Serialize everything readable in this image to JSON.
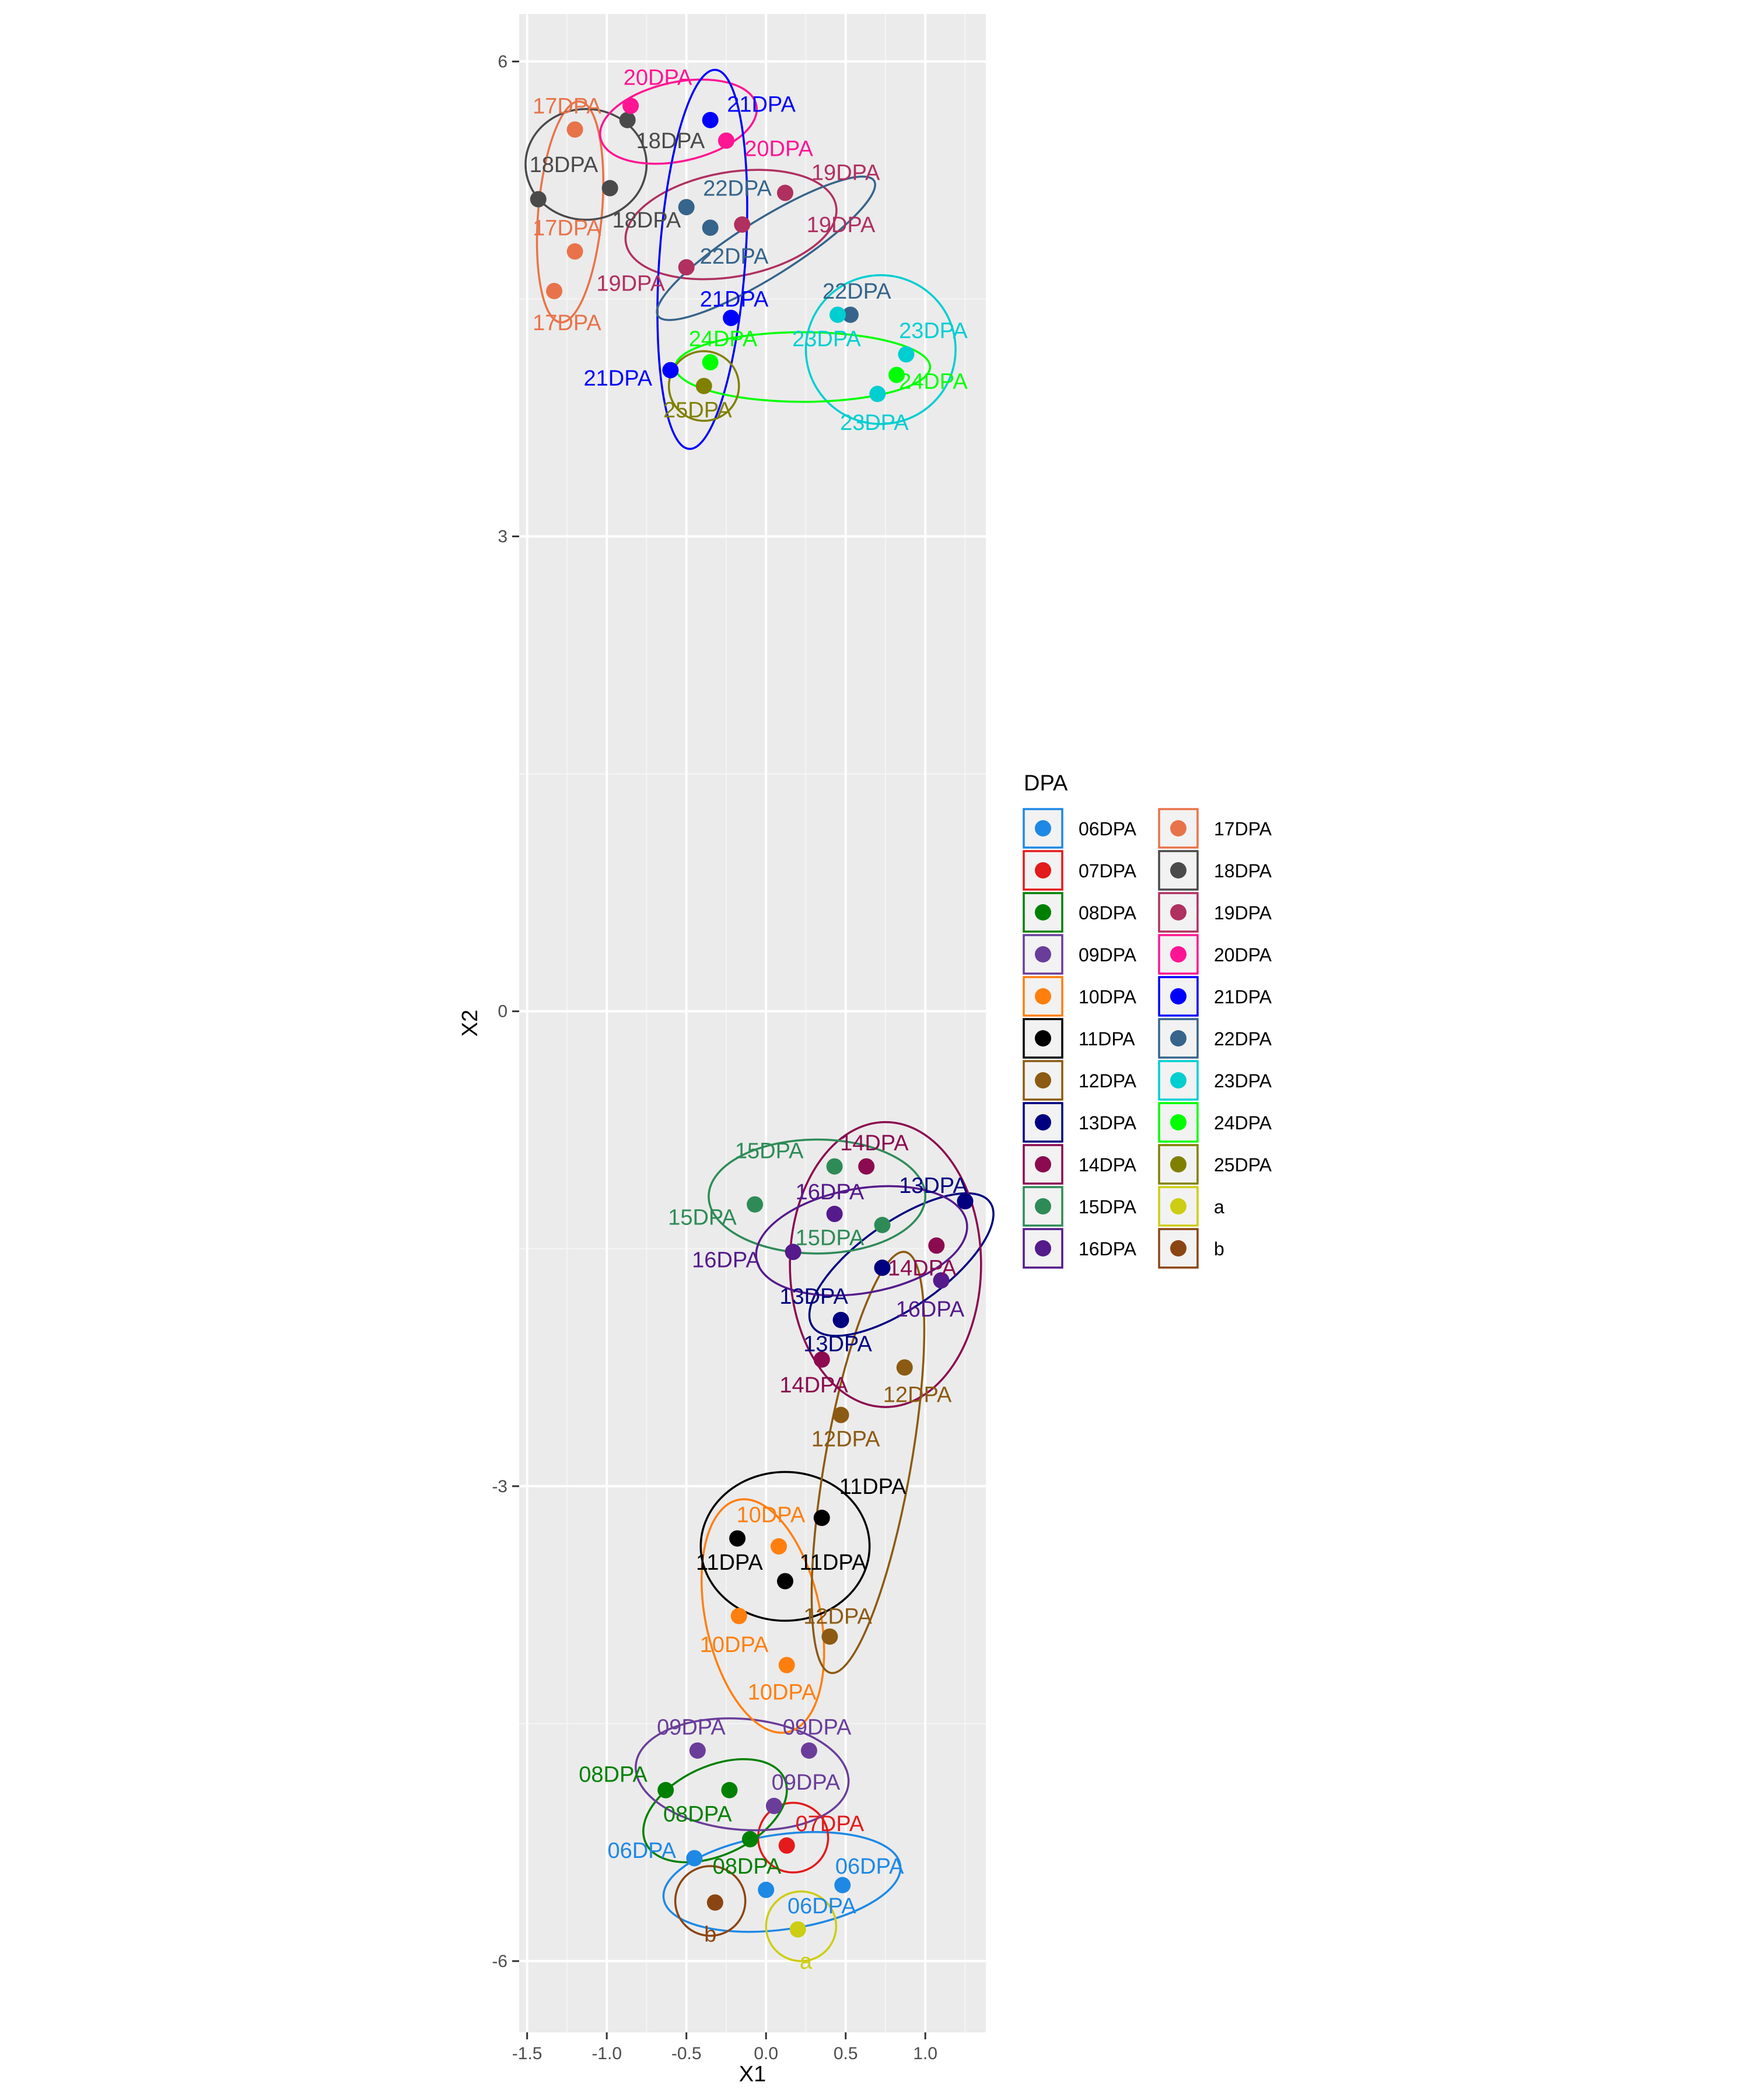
{
  "chart_data": {
    "type": "scatter",
    "xlabel": "X1",
    "ylabel": "X2",
    "xlim": [
      -1.55,
      1.38
    ],
    "ylim": [
      -6.45,
      6.3
    ],
    "xticks": [
      -1.5,
      -1.0,
      -0.5,
      0.0,
      0.5,
      1.0
    ],
    "xtick_labels": [
      "-1.5",
      "-1.0",
      "-0.5",
      "0.0",
      "0.5",
      "1.0"
    ],
    "yticks": [
      -6,
      -3,
      0,
      3,
      6
    ],
    "ytick_labels": [
      "-6",
      "-3",
      "0",
      "3",
      "6"
    ],
    "grid": true,
    "legend": {
      "title": "DPA",
      "placement": "right",
      "entries": [
        "06DPA",
        "07DPA",
        "08DPA",
        "09DPA",
        "10DPA",
        "11DPA",
        "12DPA",
        "13DPA",
        "14DPA",
        "15DPA",
        "16DPA",
        "17DPA",
        "18DPA",
        "19DPA",
        "20DPA",
        "21DPA",
        "22DPA",
        "23DPA",
        "24DPA",
        "25DPA",
        "a",
        "b"
      ]
    },
    "colors": {
      "06DPA": "#1e88e5",
      "07DPA": "#e41a1c",
      "08DPA": "#008000",
      "09DPA": "#6a3d9a",
      "10DPA": "#ff7f0e",
      "11DPA": "#000000",
      "12DPA": "#8c5a12",
      "13DPA": "#000080",
      "14DPA": "#8b0a50",
      "15DPA": "#2e8b57",
      "16DPA": "#551a8b",
      "17DPA": "#e8734a",
      "18DPA": "#4a4a4a",
      "19DPA": "#b03060",
      "20DPA": "#ff1493",
      "21DPA": "#0000ff",
      "22DPA": "#36648b",
      "23DPA": "#00ced1",
      "24DPA": "#00ff00",
      "25DPA": "#808000",
      "a": "#cdcd14",
      "b": "#8b4513"
    },
    "series": [
      {
        "name": "06DPA",
        "points": [
          {
            "x": -0.45,
            "y": -5.35,
            "label": "06DPA",
            "lx": -0.78,
            "ly": -5.3
          },
          {
            "x": 0.0,
            "y": -5.55,
            "label": "06DPA",
            "lx": 0.35,
            "ly": -5.65
          },
          {
            "x": 0.48,
            "y": -5.52,
            "label": "06DPA",
            "lx": 0.65,
            "ly": -5.4
          }
        ],
        "ellipse": {
          "cx": 0.1,
          "cy": -5.5,
          "rx": 0.75,
          "ry": 0.3,
          "rot": -8
        }
      },
      {
        "name": "07DPA",
        "points": [
          {
            "x": 0.13,
            "y": -5.27,
            "label": "07DPA",
            "lx": 0.4,
            "ly": -5.13
          }
        ],
        "ellipse": {
          "cx": 0.17,
          "cy": -5.22,
          "rx": 0.22,
          "ry": 0.22,
          "rot": 0
        }
      },
      {
        "name": "08DPA",
        "points": [
          {
            "x": -0.63,
            "y": -4.92,
            "label": "08DPA",
            "lx": -0.96,
            "ly": -4.82
          },
          {
            "x": -0.23,
            "y": -4.92,
            "label": "08DPA",
            "lx": -0.43,
            "ly": -5.07
          },
          {
            "x": -0.1,
            "y": -5.23,
            "label": "08DPA",
            "lx": -0.12,
            "ly": -5.4
          }
        ],
        "ellipse": {
          "cx": -0.32,
          "cy": -5.05,
          "rx": 0.48,
          "ry": 0.28,
          "rot": -25
        }
      },
      {
        "name": "09DPA",
        "points": [
          {
            "x": -0.43,
            "y": -4.67,
            "label": "09DPA",
            "lx": -0.47,
            "ly": -4.52
          },
          {
            "x": 0.27,
            "y": -4.67,
            "label": "09DPA",
            "lx": 0.32,
            "ly": -4.52
          },
          {
            "x": 0.05,
            "y": -5.02,
            "label": "09DPA",
            "lx": 0.25,
            "ly": -4.87
          }
        ],
        "ellipse": {
          "cx": -0.15,
          "cy": -4.82,
          "rx": 0.67,
          "ry": 0.35,
          "rot": 5
        }
      },
      {
        "name": "10DPA",
        "points": [
          {
            "x": 0.08,
            "y": -3.38,
            "label": "10DPA",
            "lx": 0.03,
            "ly": -3.18
          },
          {
            "x": -0.17,
            "y": -3.82,
            "label": "10DPA",
            "lx": -0.2,
            "ly": -4.0
          },
          {
            "x": 0.13,
            "y": -4.13,
            "label": "10DPA",
            "lx": 0.1,
            "ly": -4.3
          }
        ],
        "ellipse": {
          "cx": -0.02,
          "cy": -3.82,
          "rx": 0.36,
          "ry": 0.75,
          "rot": -12
        }
      },
      {
        "name": "11DPA",
        "points": [
          {
            "x": 0.35,
            "y": -3.2,
            "label": "11DPA",
            "lx": 0.67,
            "ly": -3.0
          },
          {
            "x": -0.18,
            "y": -3.33,
            "label": "11DPA",
            "lx": -0.23,
            "ly": -3.48
          },
          {
            "x": 0.12,
            "y": -3.6,
            "label": "11DPA",
            "lx": 0.42,
            "ly": -3.48
          }
        ],
        "ellipse": {
          "cx": 0.12,
          "cy": -3.38,
          "rx": 0.53,
          "ry": 0.47,
          "rot": 0
        }
      },
      {
        "name": "12DPA",
        "points": [
          {
            "x": 0.87,
            "y": -2.25,
            "label": "12DPA",
            "lx": 0.95,
            "ly": -2.42
          },
          {
            "x": 0.47,
            "y": -2.55,
            "label": "12DPA",
            "lx": 0.5,
            "ly": -2.7
          },
          {
            "x": 0.4,
            "y": -3.95,
            "label": "12DPA",
            "lx": 0.45,
            "ly": -3.82
          }
        ],
        "ellipse": {
          "cx": 0.64,
          "cy": -2.85,
          "rx": 0.27,
          "ry": 1.35,
          "rot": 10
        }
      },
      {
        "name": "13DPA",
        "points": [
          {
            "x": 1.25,
            "y": -1.2,
            "label": "13DPA",
            "lx": 1.05,
            "ly": -1.1
          },
          {
            "x": 0.73,
            "y": -1.62,
            "label": "13DPA",
            "lx": 0.3,
            "ly": -1.8
          },
          {
            "x": 0.47,
            "y": -1.95,
            "label": "13DPA",
            "lx": 0.45,
            "ly": -2.1
          }
        ],
        "ellipse": {
          "cx": 0.85,
          "cy": -1.6,
          "rx": 0.68,
          "ry": 0.27,
          "rot": -35
        }
      },
      {
        "name": "14DPA",
        "points": [
          {
            "x": 0.63,
            "y": -0.98,
            "label": "14DPA",
            "lx": 0.68,
            "ly": -0.83
          },
          {
            "x": 1.07,
            "y": -1.48,
            "label": "14DPA",
            "lx": 0.98,
            "ly": -1.62
          },
          {
            "x": 0.35,
            "y": -2.2,
            "label": "14DPA",
            "lx": 0.3,
            "ly": -2.36
          }
        ],
        "ellipse": {
          "cx": 0.75,
          "cy": -1.6,
          "rx": 0.6,
          "ry": 0.9,
          "rot": 0
        }
      },
      {
        "name": "15DPA",
        "points": [
          {
            "x": 0.43,
            "y": -0.98,
            "label": "15DPA",
            "lx": 0.02,
            "ly": -0.88
          },
          {
            "x": -0.07,
            "y": -1.22,
            "label": "15DPA",
            "lx": -0.4,
            "ly": -1.3
          },
          {
            "x": 0.73,
            "y": -1.35,
            "label": "15DPA",
            "lx": 0.4,
            "ly": -1.43
          }
        ],
        "ellipse": {
          "cx": 0.32,
          "cy": -1.17,
          "rx": 0.68,
          "ry": 0.36,
          "rot": 0
        }
      },
      {
        "name": "16DPA",
        "points": [
          {
            "x": 0.43,
            "y": -1.28,
            "label": "16DPA",
            "lx": 0.4,
            "ly": -1.14
          },
          {
            "x": 0.17,
            "y": -1.52,
            "label": "16DPA",
            "lx": -0.25,
            "ly": -1.57
          },
          {
            "x": 1.1,
            "y": -1.7,
            "label": "16DPA",
            "lx": 1.03,
            "ly": -1.88
          }
        ],
        "ellipse": {
          "cx": 0.6,
          "cy": -1.45,
          "rx": 0.67,
          "ry": 0.33,
          "rot": -10
        }
      },
      {
        "name": "17DPA",
        "points": [
          {
            "x": -1.2,
            "y": 5.57,
            "label": "17DPA",
            "lx": -1.25,
            "ly": 5.72
          },
          {
            "x": -1.2,
            "y": 4.8,
            "label": "17DPA",
            "lx": -1.25,
            "ly": 4.95
          },
          {
            "x": -1.33,
            "y": 4.55,
            "label": "17DPA",
            "lx": -1.25,
            "ly": 4.35
          }
        ],
        "ellipse": {
          "cx": -1.23,
          "cy": 5.05,
          "rx": 0.2,
          "ry": 0.7,
          "rot": 5
        }
      },
      {
        "name": "18DPA",
        "points": [
          {
            "x": -0.87,
            "y": 5.63,
            "label": "18DPA",
            "lx": -0.6,
            "ly": 5.5
          },
          {
            "x": -0.98,
            "y": 5.2,
            "label": "18DPA",
            "lx": -1.27,
            "ly": 5.35
          },
          {
            "x": -1.43,
            "y": 5.13,
            "label": "18DPA",
            "lx": -0.75,
            "ly": 5.0
          }
        ],
        "ellipse": {
          "cx": -1.13,
          "cy": 5.35,
          "rx": 0.38,
          "ry": 0.35,
          "rot": 0
        }
      },
      {
        "name": "19DPA",
        "points": [
          {
            "x": 0.12,
            "y": 5.17,
            "label": "19DPA",
            "lx": 0.5,
            "ly": 5.3
          },
          {
            "x": -0.15,
            "y": 4.97,
            "label": "19DPA",
            "lx": 0.47,
            "ly": 4.97
          },
          {
            "x": -0.5,
            "y": 4.7,
            "label": "19DPA",
            "lx": -0.85,
            "ly": 4.6
          }
        ],
        "ellipse": {
          "cx": -0.22,
          "cy": 4.97,
          "rx": 0.67,
          "ry": 0.33,
          "rot": -10
        }
      },
      {
        "name": "20DPA",
        "points": [
          {
            "x": -0.85,
            "y": 5.72,
            "label": "20DPA",
            "lx": -0.68,
            "ly": 5.9
          },
          {
            "x": -0.25,
            "y": 5.5,
            "label": "20DPA",
            "lx": 0.08,
            "ly": 5.45
          }
        ],
        "ellipse": {
          "cx": -0.55,
          "cy": 5.62,
          "rx": 0.5,
          "ry": 0.25,
          "rot": -12
        }
      },
      {
        "name": "21DPA",
        "points": [
          {
            "x": -0.35,
            "y": 5.63,
            "label": "21DPA",
            "lx": -0.03,
            "ly": 5.73
          },
          {
            "x": -0.22,
            "y": 4.38,
            "label": "21DPA",
            "lx": -0.2,
            "ly": 4.5
          },
          {
            "x": -0.6,
            "y": 4.05,
            "label": "21DPA",
            "lx": -0.93,
            "ly": 4.0
          }
        ],
        "ellipse": {
          "cx": -0.4,
          "cy": 4.75,
          "rx": 0.27,
          "ry": 1.2,
          "rot": 4
        }
      },
      {
        "name": "22DPA",
        "points": [
          {
            "x": -0.5,
            "y": 5.08,
            "label": "22DPA",
            "lx": -0.18,
            "ly": 5.2
          },
          {
            "x": -0.35,
            "y": 4.95,
            "label": "22DPA",
            "lx": -0.2,
            "ly": 4.77
          },
          {
            "x": 0.53,
            "y": 4.4,
            "label": "22DPA",
            "lx": 0.57,
            "ly": 4.55
          }
        ],
        "ellipse": {
          "cx": 0.0,
          "cy": 4.82,
          "rx": 0.8,
          "ry": 0.18,
          "rot": -32
        }
      },
      {
        "name": "23DPA",
        "points": [
          {
            "x": 0.45,
            "y": 4.4,
            "label": "23DPA",
            "lx": 0.38,
            "ly": 4.25
          },
          {
            "x": 0.88,
            "y": 4.15,
            "label": "23DPA",
            "lx": 1.05,
            "ly": 4.3
          },
          {
            "x": 0.7,
            "y": 3.9,
            "label": "23DPA",
            "lx": 0.68,
            "ly": 3.72
          }
        ],
        "ellipse": {
          "cx": 0.72,
          "cy": 4.18,
          "rx": 0.47,
          "ry": 0.47,
          "rot": 0
        }
      },
      {
        "name": "24DPA",
        "points": [
          {
            "x": -0.35,
            "y": 4.1,
            "label": "24DPA",
            "lx": -0.27,
            "ly": 4.25
          },
          {
            "x": 0.82,
            "y": 4.02,
            "label": "24DPA",
            "lx": 1.05,
            "ly": 3.98
          }
        ],
        "ellipse": {
          "cx": 0.23,
          "cy": 4.07,
          "rx": 0.8,
          "ry": 0.22,
          "rot": 0
        }
      },
      {
        "name": "25DPA",
        "points": [
          {
            "x": -0.39,
            "y": 3.95,
            "label": "25DPA",
            "lx": -0.43,
            "ly": 3.8
          }
        ],
        "ellipse": {
          "cx": -0.39,
          "cy": 3.95,
          "rx": 0.22,
          "ry": 0.22,
          "rot": 0
        }
      },
      {
        "name": "a",
        "points": [
          {
            "x": 0.2,
            "y": -5.8,
            "label": "a",
            "lx": 0.25,
            "ly": -6.0
          }
        ],
        "ellipse": {
          "cx": 0.22,
          "cy": -5.78,
          "rx": 0.22,
          "ry": 0.22,
          "rot": 0
        }
      },
      {
        "name": "b",
        "points": [
          {
            "x": -0.32,
            "y": -5.63,
            "label": "b",
            "lx": -0.35,
            "ly": -5.83
          }
        ],
        "ellipse": {
          "cx": -0.35,
          "cy": -5.62,
          "rx": 0.22,
          "ry": 0.22,
          "rot": 0
        }
      }
    ]
  }
}
